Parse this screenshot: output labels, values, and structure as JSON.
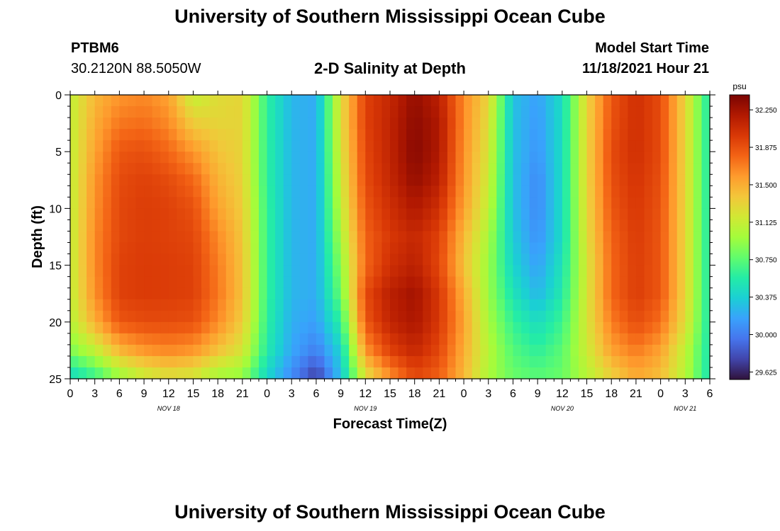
{
  "header": {
    "title": "University of Southern Mississippi Ocean Cube",
    "station_id": "PTBM6",
    "coordinates": "30.2120N  88.5050W",
    "model_start_label": "Model Start Time",
    "model_start_value": "11/18/2021 Hour 21"
  },
  "footer": {
    "title": "University of Southern Mississippi Ocean Cube"
  },
  "chart_data": {
    "type": "heatmap",
    "title": "2-D Salinity at Depth",
    "xlabel": "Forecast Time(Z)",
    "ylabel": "Depth (ft)",
    "x_unit": "hours from Nov 18 00Z",
    "xlim": [
      0,
      78
    ],
    "ylim": [
      0,
      25
    ],
    "y_inverted": true,
    "x_ticks": [
      0,
      3,
      6,
      9,
      12,
      15,
      18,
      21,
      24,
      27,
      30,
      33,
      36,
      39,
      42,
      45,
      48,
      51,
      54,
      57,
      60,
      63,
      66,
      69,
      72,
      75,
      78
    ],
    "x_tick_labels": [
      "0",
      "3",
      "6",
      "9",
      "12",
      "15",
      "18",
      "21",
      "0",
      "3",
      "6",
      "9",
      "12",
      "15",
      "18",
      "21",
      "0",
      "3",
      "6",
      "9",
      "12",
      "15",
      "18",
      "21",
      "0",
      "3",
      "6"
    ],
    "y_ticks": [
      0,
      5,
      10,
      15,
      20,
      25
    ],
    "y_tick_labels": [
      "0",
      "5",
      "10",
      "15",
      "20",
      "25"
    ],
    "date_labels": [
      {
        "hour": 12,
        "label": "NOV 18"
      },
      {
        "hour": 36,
        "label": "NOV 19"
      },
      {
        "hour": 60,
        "label": "NOV 20"
      },
      {
        "hour": 75,
        "label": "NOV 21"
      }
    ],
    "colorbar": {
      "unit": "psu",
      "min": 29.55,
      "max": 32.4,
      "ticks": [
        29.625,
        30.0,
        30.375,
        30.75,
        31.125,
        31.5,
        31.875,
        32.25
      ],
      "tick_labels": [
        "29.625",
        "30.000",
        "30.375",
        "30.750",
        "31.125",
        "31.500",
        "31.875",
        "32.250"
      ],
      "palette": [
        "#30123b",
        "#4145ab",
        "#4675ed",
        "#39a2fc",
        "#1bcfd4",
        "#24eca6",
        "#61fc6c",
        "#a4fc3b",
        "#d1e834",
        "#f3c63a",
        "#fe9b2d",
        "#f36315",
        "#d93806",
        "#b11901",
        "#7a0402"
      ]
    },
    "grid_depths_ft": [
      0,
      2.5,
      5,
      7.5,
      10,
      12.5,
      15,
      17.5,
      20,
      22.5,
      25
    ],
    "series": [
      {
        "hour": 0,
        "values": [
          31.1,
          31.1,
          31.1,
          31.1,
          31.1,
          31.1,
          31.1,
          31.1,
          31.05,
          30.85,
          30.4
        ]
      },
      {
        "hour": 3,
        "values": [
          31.45,
          31.5,
          31.55,
          31.6,
          31.62,
          31.65,
          31.65,
          31.62,
          31.5,
          31.1,
          30.6
        ]
      },
      {
        "hour": 6,
        "values": [
          31.6,
          31.72,
          31.85,
          31.9,
          31.92,
          31.92,
          31.95,
          31.95,
          31.85,
          31.45,
          30.9
        ]
      },
      {
        "hour": 9,
        "values": [
          31.65,
          31.75,
          31.88,
          31.95,
          31.97,
          31.97,
          31.98,
          31.98,
          31.9,
          31.6,
          31.1
        ]
      },
      {
        "hour": 12,
        "values": [
          31.55,
          31.65,
          31.78,
          31.9,
          31.95,
          31.95,
          31.97,
          31.97,
          31.9,
          31.65,
          31.2
        ]
      },
      {
        "hour": 15,
        "values": [
          31.1,
          31.35,
          31.6,
          31.78,
          31.88,
          31.92,
          31.95,
          31.95,
          31.88,
          31.6,
          31.15
        ]
      },
      {
        "hour": 18,
        "values": [
          31.25,
          31.3,
          31.4,
          31.48,
          31.55,
          31.65,
          31.7,
          31.72,
          31.65,
          31.4,
          30.95
        ]
      },
      {
        "hour": 21,
        "values": [
          31.3,
          31.3,
          31.3,
          31.32,
          31.35,
          31.38,
          31.4,
          31.4,
          31.35,
          31.2,
          30.9
        ]
      },
      {
        "hour": 24,
        "values": [
          30.6,
          30.6,
          30.6,
          30.6,
          30.62,
          30.62,
          30.62,
          30.62,
          30.6,
          30.55,
          30.4
        ]
      },
      {
        "hour": 27,
        "values": [
          30.25,
          30.25,
          30.25,
          30.25,
          30.25,
          30.25,
          30.25,
          30.25,
          30.22,
          30.18,
          30.05
        ]
      },
      {
        "hour": 30,
        "values": [
          30.2,
          30.2,
          30.2,
          30.2,
          30.2,
          30.2,
          30.2,
          30.2,
          30.15,
          30.0,
          29.7
        ]
      },
      {
        "hour": 33,
        "values": [
          31.25,
          31.25,
          31.2,
          31.15,
          31.1,
          31.0,
          30.9,
          30.8,
          30.6,
          30.4,
          30.3
        ]
      },
      {
        "hour": 36,
        "values": [
          31.95,
          31.95,
          31.92,
          31.9,
          31.85,
          31.8,
          31.78,
          31.9,
          31.85,
          31.6,
          31.2
        ]
      },
      {
        "hour": 39,
        "values": [
          32.1,
          32.12,
          32.12,
          32.1,
          32.05,
          32.0,
          32.05,
          32.15,
          32.12,
          31.95,
          31.6
        ]
      },
      {
        "hour": 42,
        "values": [
          32.3,
          32.33,
          32.35,
          32.3,
          32.2,
          32.1,
          32.15,
          32.25,
          32.22,
          32.1,
          31.9
        ]
      },
      {
        "hour": 45,
        "values": [
          32.15,
          32.2,
          32.2,
          32.15,
          32.05,
          31.95,
          31.92,
          32.0,
          32.0,
          31.92,
          31.8
        ]
      },
      {
        "hour": 48,
        "values": [
          31.65,
          31.65,
          31.62,
          31.6,
          31.55,
          31.45,
          31.4,
          31.5,
          31.55,
          31.5,
          31.45
        ]
      },
      {
        "hour": 51,
        "values": [
          31.3,
          31.25,
          31.2,
          31.15,
          31.1,
          31.0,
          30.95,
          30.95,
          31.0,
          31.05,
          31.0
        ]
      },
      {
        "hour": 54,
        "values": [
          30.3,
          30.3,
          30.3,
          30.3,
          30.3,
          30.35,
          30.4,
          30.5,
          30.62,
          30.72,
          30.8
        ]
      },
      {
        "hour": 57,
        "values": [
          30.15,
          30.12,
          30.1,
          30.05,
          30.05,
          30.08,
          30.15,
          30.25,
          30.45,
          30.6,
          30.75
        ]
      },
      {
        "hour": 60,
        "values": [
          30.45,
          30.45,
          30.45,
          30.45,
          30.45,
          30.45,
          30.5,
          30.55,
          30.65,
          30.75,
          30.8
        ]
      },
      {
        "hour": 63,
        "values": [
          31.3,
          31.3,
          31.3,
          31.3,
          31.28,
          31.25,
          31.2,
          31.2,
          31.2,
          31.15,
          31.05
        ]
      },
      {
        "hour": 66,
        "values": [
          31.85,
          31.87,
          31.9,
          31.88,
          31.85,
          31.8,
          31.78,
          31.78,
          31.7,
          31.55,
          31.3
        ]
      },
      {
        "hour": 69,
        "values": [
          32.05,
          32.05,
          32.05,
          32.02,
          32.0,
          31.98,
          31.97,
          31.97,
          31.9,
          31.7,
          31.5
        ]
      },
      {
        "hour": 72,
        "values": [
          31.9,
          31.9,
          31.9,
          31.88,
          31.86,
          31.85,
          31.85,
          31.85,
          31.75,
          31.55,
          31.4
        ]
      },
      {
        "hour": 75,
        "values": [
          31.3,
          31.3,
          31.3,
          31.3,
          31.3,
          31.3,
          31.3,
          31.3,
          31.25,
          31.1,
          31.05
        ]
      },
      {
        "hour": 78,
        "values": [
          30.5,
          30.5,
          30.5,
          30.5,
          30.5,
          30.5,
          30.5,
          30.5,
          30.5,
          30.5,
          30.5
        ]
      }
    ]
  }
}
